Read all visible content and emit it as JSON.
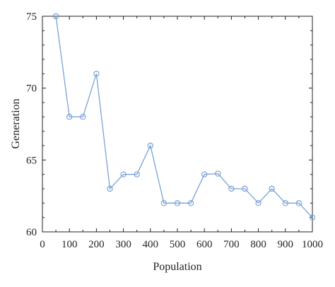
{
  "chart_data": {
    "type": "line",
    "xlabel": "Population",
    "ylabel": "Generation",
    "xlim": [
      0,
      1000
    ],
    "ylim": [
      60,
      75
    ],
    "x_ticks": [
      0,
      100,
      200,
      300,
      400,
      500,
      600,
      700,
      800,
      900,
      1000
    ],
    "y_ticks": [
      60,
      65,
      70,
      75
    ],
    "grid": false,
    "series": [
      {
        "color": "#7aa3d6",
        "marker": "circle",
        "x": [
          50,
          100,
          150,
          200,
          250,
          300,
          350,
          400,
          450,
          500,
          550,
          600,
          650,
          700,
          750,
          800,
          850,
          900,
          950,
          1000
        ],
        "y": [
          75,
          68,
          68,
          71,
          63,
          64,
          64,
          66,
          62,
          62,
          62,
          64,
          64.05,
          63,
          63,
          62,
          63,
          62,
          62,
          61
        ]
      }
    ]
  }
}
